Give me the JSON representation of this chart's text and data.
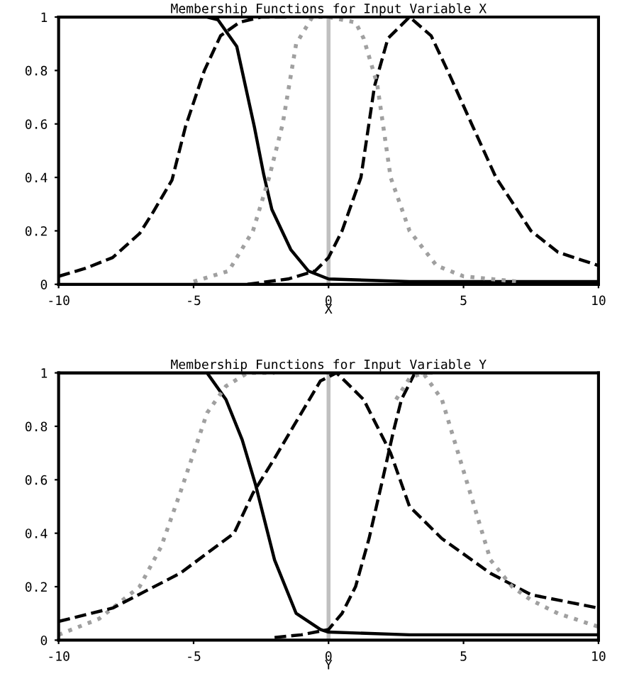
{
  "chart_data": [
    {
      "type": "line",
      "title": "Membership Functions for Input Variable X",
      "xlabel": "X",
      "xlim": [
        -10,
        10
      ],
      "ylim": [
        0,
        1
      ],
      "xticks": [
        -10,
        -5,
        0,
        5,
        10
      ],
      "yticks": [
        0,
        0.2,
        0.4,
        0.6,
        0.8,
        1
      ],
      "grid": false,
      "legend": false,
      "ref_lines": [
        {
          "axis": "x",
          "value": 0,
          "color": "#c0c0c0",
          "line_style": "solid"
        }
      ],
      "series": [
        {
          "color": "#000000",
          "line_style": "solid",
          "x": [
            -10,
            -6,
            -4.5,
            -4.1,
            -3.4,
            -2.75,
            -2.4,
            -2.1,
            -1.4,
            -0.75,
            0,
            3,
            10
          ],
          "values": [
            1,
            1,
            1,
            0.99,
            0.89,
            0.59,
            0.41,
            0.28,
            0.13,
            0.05,
            0.02,
            0.01,
            0.01
          ]
        },
        {
          "color": "#000000",
          "line_style": "dashed",
          "x": [
            -10,
            -9,
            -8,
            -7,
            -6.5,
            -5.8,
            -5.3,
            -4.6,
            -4,
            -3.3,
            -2.5,
            -1.5
          ],
          "values": [
            0.03,
            0.06,
            0.1,
            0.19,
            0.27,
            0.39,
            0.59,
            0.8,
            0.93,
            0.98,
            1,
            1
          ]
        },
        {
          "color": "#000000",
          "line_style": "dashed",
          "x": [
            -3,
            -1.5,
            -0.5,
            0,
            0.5,
            1.2,
            1.7,
            2.2,
            3,
            3.8,
            4.5,
            5.3,
            6.2,
            7.5,
            8.5,
            10
          ],
          "values": [
            0,
            0.02,
            0.05,
            0.1,
            0.2,
            0.4,
            0.74,
            0.92,
            1,
            0.93,
            0.78,
            0.6,
            0.4,
            0.2,
            0.12,
            0.07
          ]
        },
        {
          "color": "#a0a0a0",
          "line_style": "dotted",
          "x": [
            -5,
            -3.7,
            -2.8,
            -2.2,
            -1.7,
            -1.2,
            -0.6,
            0,
            1,
            1.3,
            1.8,
            2.3,
            3,
            4,
            5,
            7
          ],
          "values": [
            0.01,
            0.05,
            0.2,
            0.4,
            0.6,
            0.9,
            1,
            1,
            0.98,
            0.92,
            0.75,
            0.4,
            0.2,
            0.07,
            0.03,
            0.01
          ]
        }
      ]
    },
    {
      "type": "line",
      "title": "Membership Functions for Input Variable Y",
      "xlabel": "Y",
      "xlim": [
        -10,
        10
      ],
      "ylim": [
        0,
        1
      ],
      "xticks": [
        -10,
        -5,
        0,
        5,
        10
      ],
      "yticks": [
        0,
        0.2,
        0.4,
        0.6,
        0.8,
        1
      ],
      "grid": false,
      "legend": false,
      "ref_lines": [
        {
          "axis": "x",
          "value": 0,
          "color": "#c0c0c0",
          "line_style": "solid"
        }
      ],
      "series": [
        {
          "color": "#000000",
          "line_style": "solid",
          "x": [
            -10,
            -6,
            -4.5,
            -3.8,
            -3.2,
            -2.7,
            -2,
            -1.2,
            -0.3,
            0,
            3,
            10
          ],
          "values": [
            1,
            1,
            1,
            0.9,
            0.75,
            0.58,
            0.3,
            0.1,
            0.04,
            0.03,
            0.02,
            0.02
          ]
        },
        {
          "color": "#a0a0a0",
          "line_style": "dotted",
          "x": [
            -10,
            -8.5,
            -7,
            -6.2,
            -5.5,
            -4.5,
            -3.8,
            -3,
            -2
          ],
          "values": [
            0.02,
            0.08,
            0.2,
            0.35,
            0.55,
            0.85,
            0.95,
            1,
            1
          ]
        },
        {
          "color": "#000000",
          "line_style": "dashed",
          "x": [
            -10,
            -8,
            -5.5,
            -3.5,
            -2.8,
            -2,
            -1.3,
            -0.3,
            0.3,
            1.3,
            2.3,
            3,
            4.2,
            6,
            7.5,
            10
          ],
          "values": [
            0.07,
            0.12,
            0.25,
            0.4,
            0.55,
            0.68,
            0.8,
            0.97,
            1,
            0.9,
            0.7,
            0.5,
            0.38,
            0.25,
            0.17,
            0.12
          ]
        },
        {
          "color": "#000000",
          "line_style": "dashed",
          "x": [
            -2,
            -1,
            0,
            0.5,
            1,
            1.5,
            2,
            2.4,
            2.7,
            3.2,
            4
          ],
          "values": [
            0.01,
            0.02,
            0.04,
            0.1,
            0.2,
            0.38,
            0.6,
            0.78,
            0.9,
            1,
            1
          ]
        },
        {
          "color": "#a0a0a0",
          "line_style": "dotted",
          "x": [
            2.5,
            3,
            3.5,
            4.2,
            5.1,
            6,
            6.8,
            7.5,
            8.5,
            10
          ],
          "values": [
            0.9,
            0.98,
            1,
            0.9,
            0.6,
            0.3,
            0.2,
            0.15,
            0.1,
            0.05
          ]
        }
      ]
    }
  ]
}
